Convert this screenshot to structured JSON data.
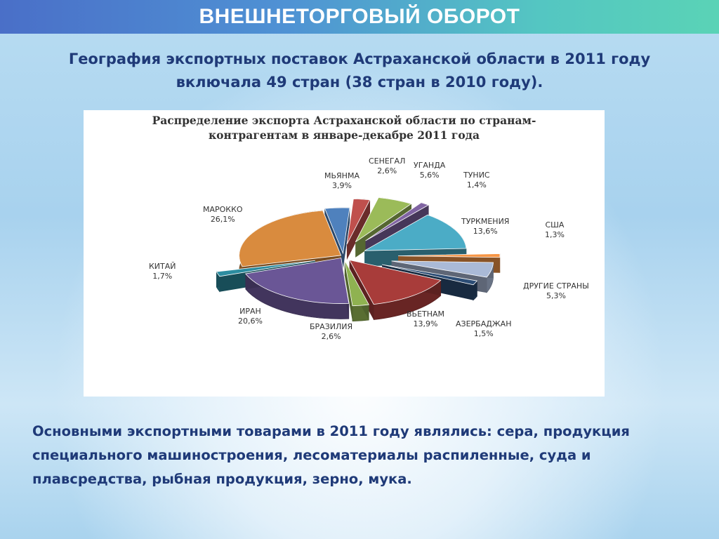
{
  "header": {
    "title": "ВНЕШНЕТОРГОВЫЙ ОБОРОТ"
  },
  "subtitle": {
    "line1": "География экспортных поставок Астраханской области в 2011 году",
    "line2": "включала 49 стран  (38 стран в 2010 году)."
  },
  "chart_data": {
    "type": "pie",
    "title_line1": "Распределение экспорта Астраханской области по странам-",
    "title_line2": "контрагентам в январе-декабре 2011 года",
    "unit": "%",
    "exploded": true,
    "style": "3d",
    "slices": [
      {
        "name": "МЬЯНМА",
        "value": 3.9,
        "label": "3,9%",
        "color": "#4f81bd"
      },
      {
        "name": "СЕНЕГАЛ",
        "value": 2.6,
        "label": "2,6%",
        "color": "#c0504d"
      },
      {
        "name": "УГАНДА",
        "value": 5.6,
        "label": "5,6%",
        "color": "#9bbb59"
      },
      {
        "name": "ТУНИС",
        "value": 1.4,
        "label": "1,4%",
        "color": "#8064a2"
      },
      {
        "name": "ТУРКМЕНИЯ",
        "value": 13.6,
        "label": "13,6%",
        "color": "#4bacc6"
      },
      {
        "name": "США",
        "value": 1.3,
        "label": "1,3%",
        "color": "#f79646"
      },
      {
        "name": "ДРУГИЕ СТРАНЫ",
        "value": 5.3,
        "label": "5,3%",
        "color": "#aabad7"
      },
      {
        "name": "АЗЕРБАДЖАН",
        "value": 1.5,
        "label": "1,5%",
        "color": "#2c4d75"
      },
      {
        "name": "ВЬЕТНАМ",
        "value": 13.9,
        "label": "13,9%",
        "color": "#a83c3a"
      },
      {
        "name": "БРАЗИЛИЯ",
        "value": 2.6,
        "label": "2,6%",
        "color": "#8fb251"
      },
      {
        "name": "ИРАН",
        "value": 20.6,
        "label": "20,6%",
        "color": "#6a5696"
      },
      {
        "name": "КИТАЙ",
        "value": 1.7,
        "label": "1,7%",
        "color": "#2c8ca0"
      },
      {
        "name": "МАРОККО",
        "value": 26.1,
        "label": "26,1%",
        "color": "#d98b3e"
      }
    ]
  },
  "footer": {
    "line1": "Основными экспортными товарами в 2011 году являлись: сера,  продукция",
    "line2": "специального машиностроения, лесоматериалы распиленные,  суда и",
    "line3": "плавсредства, рыбная продукция,  зерно,  мука."
  }
}
